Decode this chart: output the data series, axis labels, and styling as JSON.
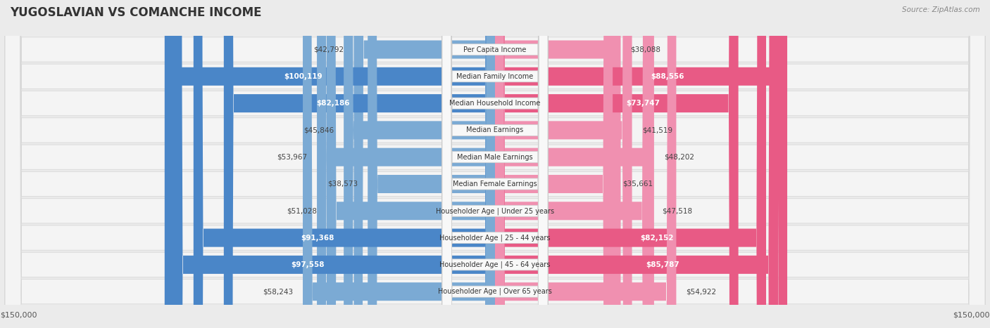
{
  "title": "YUGOSLAVIAN VS COMANCHE INCOME",
  "source": "Source: ZipAtlas.com",
  "categories": [
    "Per Capita Income",
    "Median Family Income",
    "Median Household Income",
    "Median Earnings",
    "Median Male Earnings",
    "Median Female Earnings",
    "Householder Age | Under 25 years",
    "Householder Age | 25 - 44 years",
    "Householder Age | 45 - 64 years",
    "Householder Age | Over 65 years"
  ],
  "yugoslavian_values": [
    42792,
    100119,
    82186,
    45846,
    53967,
    38573,
    51028,
    91368,
    97558,
    58243
  ],
  "comanche_values": [
    38088,
    88556,
    73747,
    41519,
    48202,
    35661,
    47518,
    82152,
    85787,
    54922
  ],
  "yugoslavian_labels": [
    "$42,792",
    "$100,119",
    "$82,186",
    "$45,846",
    "$53,967",
    "$38,573",
    "$51,028",
    "$91,368",
    "$97,558",
    "$58,243"
  ],
  "comanche_labels": [
    "$38,088",
    "$88,556",
    "$73,747",
    "$41,519",
    "$48,202",
    "$35,661",
    "$47,518",
    "$82,152",
    "$85,787",
    "$54,922"
  ],
  "max_value": 150000,
  "yugo_color_light": "#a8c8e8",
  "yugo_color_mid": "#7baad4",
  "yugo_color_dark": "#4a86c8",
  "com_color_light": "#f8b8cc",
  "com_color_mid": "#f090b0",
  "com_color_dark": "#e85a85",
  "background_color": "#ebebeb",
  "row_bg_color": "#f4f4f4",
  "row_border_color": "#d8d8d8",
  "label_box_color": "#f8f8f8",
  "label_box_border": "#cccccc",
  "yugo_threshold": 65000,
  "com_threshold": 65000,
  "legend_yugo_color": "#7ab0e0",
  "legend_com_color": "#f080a0"
}
